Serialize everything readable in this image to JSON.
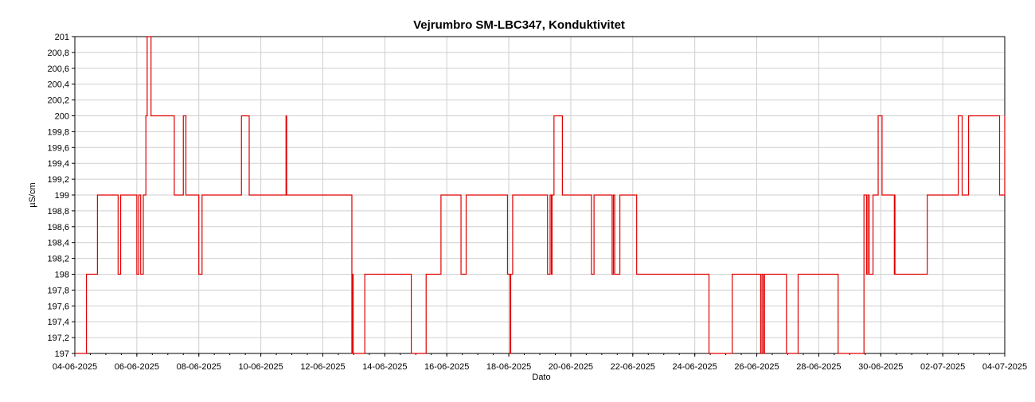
{
  "chart_data": {
    "type": "line",
    "title": "Vejrumbro SM-LBC347, Konduktivitet",
    "xlabel": "Dato",
    "ylabel": "µS/cm",
    "x_is_date": true,
    "xlim": [
      "2025-06-04",
      "2025-07-04"
    ],
    "ylim": [
      197,
      201
    ],
    "grid": true,
    "legend": "none",
    "line_color": "#e00000",
    "y_ticks": [
      197,
      197.2,
      197.4,
      197.6,
      197.8,
      198,
      198.2,
      198.4,
      198.6,
      198.8,
      199,
      199.2,
      199.4,
      199.6,
      199.8,
      200,
      200.2,
      200.4,
      200.6,
      200.8,
      201
    ],
    "y_tick_labels": [
      "197",
      "197,2",
      "197,4",
      "197,6",
      "197,8",
      "198",
      "198,2",
      "198,4",
      "198,6",
      "198,8",
      "199",
      "199,2",
      "199,4",
      "199,6",
      "199,8",
      "200",
      "200,2",
      "200,4",
      "200,6",
      "200,8",
      "201"
    ],
    "x_ticks": [
      "2025-06-04",
      "2025-06-06",
      "2025-06-08",
      "2025-06-10",
      "2025-06-12",
      "2025-06-14",
      "2025-06-16",
      "2025-06-18",
      "2025-06-20",
      "2025-06-22",
      "2025-06-24",
      "2025-06-26",
      "2025-06-28",
      "2025-06-30",
      "2025-07-02",
      "2025-07-04"
    ],
    "x_tick_labels": [
      "04-06-2025",
      "06-06-2025",
      "08-06-2025",
      "10-06-2025",
      "12-06-2025",
      "14-06-2025",
      "16-06-2025",
      "18-06-2025",
      "20-06-2025",
      "22-06-2025",
      "24-06-2025",
      "26-06-2025",
      "28-06-2025",
      "30-06-2025",
      "02-07-2025",
      "04-07-2025"
    ],
    "series": [
      {
        "step": true,
        "x": [
          "2025-06-04 00:00",
          "2025-06-04 09:00",
          "2025-06-04 17:30",
          "2025-06-05 09:30",
          "2025-06-05 11:30",
          "2025-06-06 00:00",
          "2025-06-06 01:30",
          "2025-06-06 03:00",
          "2025-06-06 05:00",
          "2025-06-06 07:00",
          "2025-06-06 08:00",
          "2025-06-06 11:00",
          "2025-06-06 11:30",
          "2025-06-06 13:00",
          "2025-06-07 05:00",
          "2025-06-07 12:00",
          "2025-06-07 14:00",
          "2025-06-07 16:00",
          "2025-06-08 00:00",
          "2025-06-08 02:30",
          "2025-06-09 09:00",
          "2025-06-09 15:00",
          "2025-06-10 19:30",
          "2025-06-10 20:00",
          "2025-06-10 20:30",
          "2025-06-11 16:00",
          "2025-06-12 22:30",
          "2025-06-12 23:00",
          "2025-06-12 23:30",
          "2025-06-13 08:30",
          "2025-06-14 20:30",
          "2025-06-15 08:00",
          "2025-06-15 19:30",
          "2025-06-16 11:00",
          "2025-06-16 15:00",
          "2025-06-16 18:00",
          "2025-06-17 23:00",
          "2025-06-18 01:00",
          "2025-06-18 01:30",
          "2025-06-18 03:00",
          "2025-06-19 06:00",
          "2025-06-19 08:00",
          "2025-06-19 09:00",
          "2025-06-19 09:30",
          "2025-06-19 11:00",
          "2025-06-19 12:00",
          "2025-06-19 17:00",
          "2025-06-19 17:30",
          "2025-06-20 16:00",
          "2025-06-20 18:00",
          "2025-06-21 08:00",
          "2025-06-21 09:00",
          "2025-06-21 10:00",
          "2025-06-21 14:00",
          "2025-06-22 03:00",
          "2025-06-22 13:00",
          "2025-06-24 11:00",
          "2025-06-25 05:00",
          "2025-06-26 03:00",
          "2025-06-26 04:00",
          "2025-06-26 05:00",
          "2025-06-26 06:00",
          "2025-06-26 23:00",
          "2025-06-27 08:00",
          "2025-06-28 15:00",
          "2025-06-29 11:00",
          "2025-06-29 13:00",
          "2025-06-29 14:00",
          "2025-06-29 15:00",
          "2025-06-29 18:00",
          "2025-06-29 22:00",
          "2025-06-30 01:00",
          "2025-06-30 10:30",
          "2025-06-30 10:45",
          "2025-06-30 11:00",
          "2025-07-01 02:00",
          "2025-07-01 11:00",
          "2025-07-01 12:00",
          "2025-07-01 13:00",
          "2025-07-02 12:00",
          "2025-07-02 15:00",
          "2025-07-02 20:00",
          "2025-07-03 20:00",
          "2025-07-04 00:00"
        ],
        "y": [
          197,
          198,
          199,
          198,
          199,
          198,
          199,
          198,
          199,
          200,
          201,
          200,
          200,
          200,
          199,
          200,
          199,
          199,
          198,
          199,
          200,
          199,
          200,
          199,
          199,
          199,
          197,
          198,
          197,
          198,
          197,
          198,
          199,
          198,
          199,
          199,
          198,
          197,
          198,
          199,
          198,
          199,
          198,
          199,
          200,
          200,
          200,
          199,
          198,
          199,
          198,
          199,
          198,
          199,
          198,
          198,
          197,
          198,
          197,
          198,
          197,
          198,
          197,
          198,
          197,
          199,
          198,
          199,
          198,
          199,
          200,
          199,
          198,
          199,
          198,
          198,
          198,
          199,
          199,
          200,
          199,
          200,
          199,
          200
        ]
      }
    ]
  }
}
